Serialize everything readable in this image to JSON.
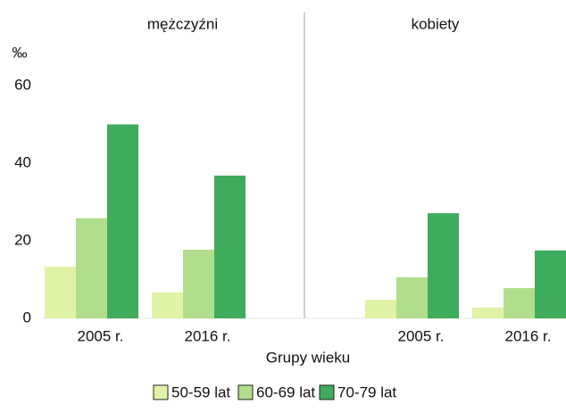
{
  "chart_data": {
    "type": "bar",
    "y_label": "‰",
    "x_label": "Grupy wieku",
    "ylim": [
      0,
      60
    ],
    "yticks": [
      0,
      20,
      40,
      60
    ],
    "series": [
      {
        "name": "50-59 lat",
        "color": "#e0f2a6"
      },
      {
        "name": "60-69 lat",
        "color": "#b1de8c"
      },
      {
        "name": "70-79 lat",
        "color": "#3fab5c"
      }
    ],
    "panels": [
      {
        "title": "mężczyźni",
        "categories": [
          "2005 r.",
          "2016 r."
        ],
        "values": [
          [
            13.3,
            6.7
          ],
          [
            25.8,
            17.7
          ],
          [
            50,
            36.8
          ]
        ]
      },
      {
        "title": "kobiety",
        "categories": [
          "2005 r.",
          "2016 r."
        ],
        "values": [
          [
            4.8,
            2.8
          ],
          [
            10.6,
            7.8
          ],
          [
            27.1,
            17.5
          ]
        ]
      }
    ]
  }
}
